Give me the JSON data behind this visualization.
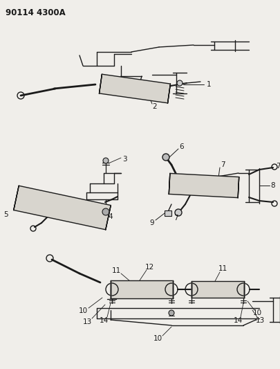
{
  "title": "90114 4300A",
  "bg_color": "#f0eeea",
  "line_color": "#1a1a1a",
  "figsize": [
    4.05,
    5.33
  ],
  "dpi": 100,
  "title_fontsize": 8.5,
  "label_fontsize": 7.5
}
